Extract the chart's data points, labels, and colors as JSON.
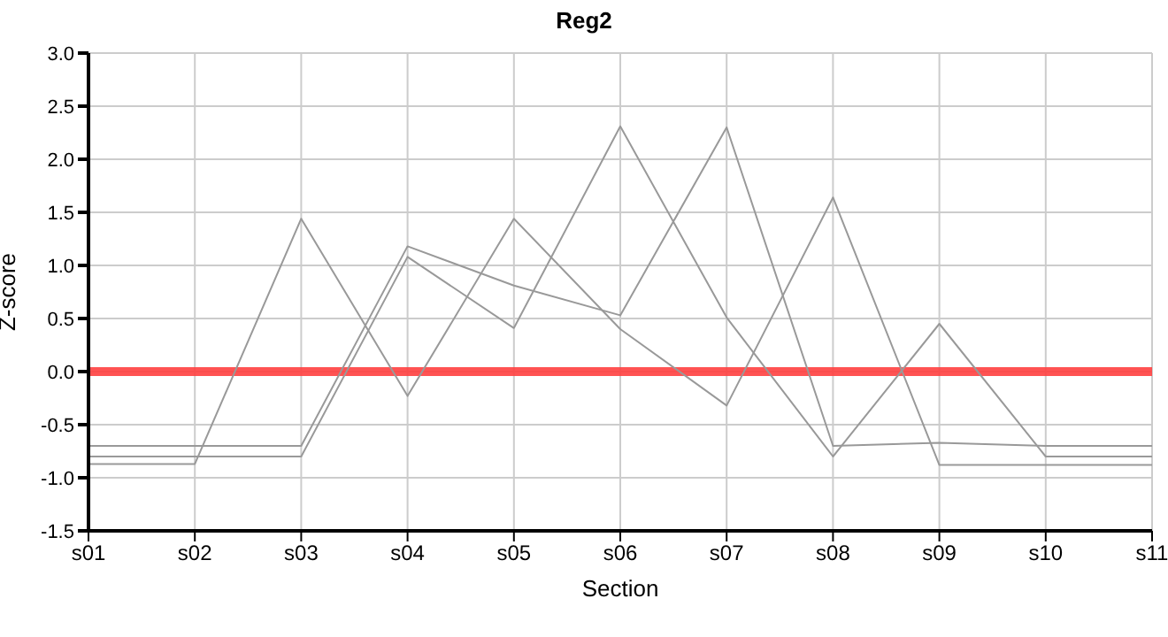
{
  "chart_data": {
    "type": "line",
    "title": "Reg2",
    "xlabel": "Section",
    "ylabel": "Z-score",
    "categories": [
      "s01",
      "s02",
      "s03",
      "s04",
      "s05",
      "s06",
      "s07",
      "s08",
      "s09",
      "s10",
      "s11"
    ],
    "series": [
      {
        "color": "#999999",
        "values": [
          -0.7,
          -0.7,
          -0.7,
          1.18,
          0.81,
          0.53,
          2.3,
          -0.7,
          -0.67,
          -0.7,
          -0.7
        ]
      },
      {
        "color": "#999999",
        "values": [
          -0.8,
          -0.8,
          -0.8,
          1.08,
          0.41,
          2.31,
          0.51,
          -0.8,
          0.45,
          -0.8,
          -0.8
        ]
      },
      {
        "color": "#999999",
        "values": [
          -0.87,
          -0.87,
          1.44,
          -0.23,
          1.44,
          0.4,
          -0.32,
          1.64,
          -0.88,
          -0.88,
          -0.88
        ]
      }
    ],
    "ylim": [
      -1.5,
      3.0
    ],
    "yticks": [
      {
        "value": -1.5,
        "label": "-1.5"
      },
      {
        "value": -1,
        "label": "-1.0"
      },
      {
        "value": -0.5,
        "label": "-0.5"
      },
      {
        "value": 0,
        "label": "0.0"
      },
      {
        "value": 0.5,
        "label": "0.5"
      },
      {
        "value": 1,
        "label": "1.0"
      },
      {
        "value": 1.5,
        "label": "1.5"
      },
      {
        "value": 2,
        "label": "2.0"
      },
      {
        "value": 2.5,
        "label": "2.5"
      },
      {
        "value": 3,
        "label": "3.0"
      }
    ],
    "ref_lines": [
      {
        "axis": "y",
        "value": 0,
        "color": "#ff4040"
      }
    ],
    "grid": true,
    "legend": false,
    "marker": "none",
    "line_style": "solid"
  }
}
